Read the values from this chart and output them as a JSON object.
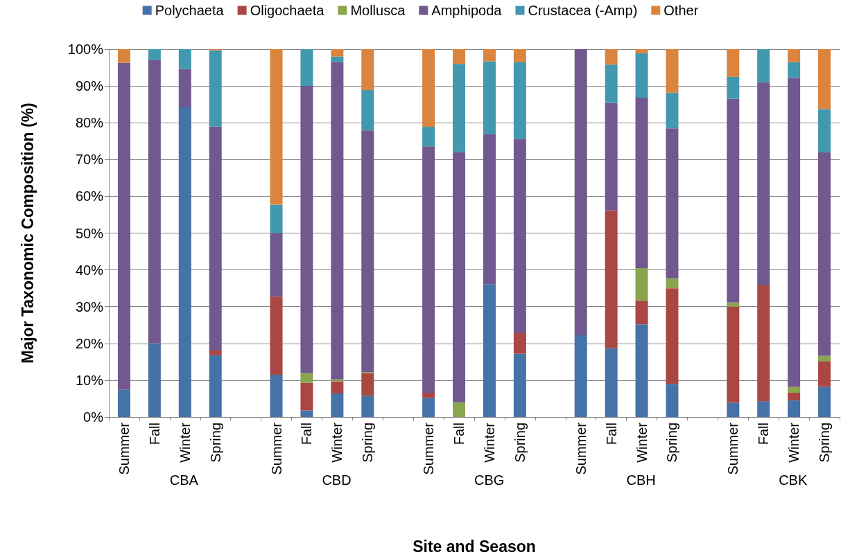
{
  "chart_data": {
    "type": "bar",
    "stacked": true,
    "xlabel": "Site and Season",
    "ylabel": "Major Taxonomic Composition (%)",
    "categories": [
      "Summer",
      "Fall",
      "Winter",
      "Spring",
      null,
      "Summer",
      "Fall",
      "Winter",
      "Spring",
      null,
      "Summer",
      "Fall",
      "Winter",
      "Spring",
      null,
      "Summer",
      "Fall",
      "Winter",
      "Spring",
      null,
      "Summer",
      "Fall",
      "Winter",
      "Spring"
    ],
    "annotations": [
      "CBA",
      "CBD",
      "CBG",
      "CBH",
      "CBK"
    ],
    "series": [
      {
        "name": "Polychaeta",
        "color": "#4572a7",
        "values": [
          7.4,
          20,
          84.2,
          16.8,
          null,
          11.5,
          1.8,
          6.4,
          5.8,
          null,
          5.2,
          0,
          36.1,
          17.2,
          null,
          22.2,
          18.7,
          25.2,
          9,
          null,
          3.9,
          4.3,
          4.5,
          8.2
        ]
      },
      {
        "name": "Oligochaeta",
        "color": "#aa4643",
        "values": [
          0,
          0,
          0,
          1.3,
          null,
          21.2,
          7.5,
          3.3,
          6.1,
          null,
          1.4,
          0,
          0,
          5.6,
          null,
          0,
          37.5,
          6.5,
          26,
          null,
          26.1,
          31.5,
          2.1,
          7
        ]
      },
      {
        "name": "Mollusca",
        "color": "#89a54e",
        "values": [
          0,
          0,
          0,
          0,
          null,
          0,
          2.6,
          0.5,
          0.3,
          null,
          0,
          4,
          0,
          0,
          null,
          0,
          0,
          8.8,
          2.7,
          null,
          1.1,
          0,
          1.6,
          1.4
        ]
      },
      {
        "name": "Amphipoda",
        "color": "#71588f",
        "values": [
          88.9,
          77,
          10.4,
          60.9,
          null,
          17.3,
          78.1,
          86.3,
          65.7,
          null,
          67,
          68,
          40.9,
          52.8,
          null,
          77.8,
          29.2,
          46.3,
          40.8,
          null,
          55.4,
          55.2,
          84,
          55.4
        ]
      },
      {
        "name": "Crustacea (-Amp)",
        "color": "#4198af",
        "values": [
          0,
          3,
          5.4,
          20.7,
          null,
          7.7,
          10,
          1.5,
          11,
          null,
          5.3,
          24,
          19.7,
          20.9,
          null,
          0,
          10.4,
          12.1,
          9.7,
          null,
          6,
          9,
          4.3,
          11.7
        ]
      },
      {
        "name": "Other",
        "color": "#db843d",
        "values": [
          3.7,
          0,
          0,
          0.3,
          null,
          42.3,
          0,
          2,
          11.1,
          null,
          21.1,
          4,
          3.3,
          3.5,
          null,
          0,
          4.2,
          1.1,
          11.8,
          null,
          7.5,
          0,
          3.5,
          16.3
        ]
      }
    ],
    "ylim": [
      0,
      100
    ],
    "yticks": [
      {
        "value": 0,
        "label": "0%"
      },
      {
        "value": 10,
        "label": "10%"
      },
      {
        "value": 20,
        "label": "20%"
      },
      {
        "value": 30,
        "label": "30%"
      },
      {
        "value": 40,
        "label": "40%"
      },
      {
        "value": 50,
        "label": "50%"
      },
      {
        "value": 60,
        "label": "60%"
      },
      {
        "value": 70,
        "label": "70%"
      },
      {
        "value": 80,
        "label": "80%"
      },
      {
        "value": 90,
        "label": "90%"
      },
      {
        "value": 100,
        "label": "100%"
      }
    ],
    "grid": "y",
    "legend": "top"
  }
}
